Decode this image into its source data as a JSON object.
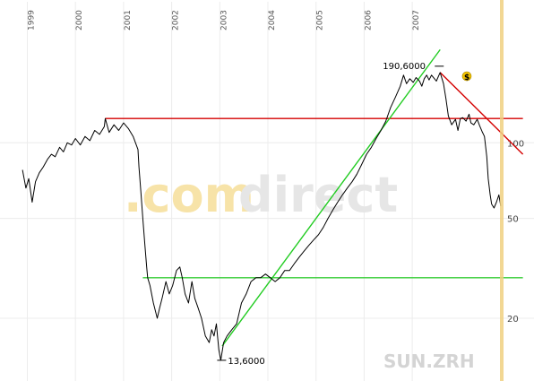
{
  "chart_data": {
    "type": "line",
    "symbol": "SUN.ZRH",
    "watermark": {
      "part1": ".com",
      "part2": "direct"
    },
    "years": [
      "1999",
      "2000",
      "2001",
      "2002",
      "2003",
      "2004",
      "2005",
      "2006",
      "2007"
    ],
    "y_scale": "log",
    "y_ticks": [
      "20",
      "50",
      "100"
    ],
    "annotations": {
      "high": "190,6000",
      "low": "13,6000",
      "dividend_marker": "$"
    },
    "series": [
      {
        "values": [
          [
            1998.9,
            78
          ],
          [
            1998.97,
            66
          ],
          [
            1999.03,
            72
          ],
          [
            1999.1,
            58
          ],
          [
            1999.17,
            70
          ],
          [
            1999.25,
            76
          ],
          [
            1999.33,
            80
          ],
          [
            1999.42,
            86
          ],
          [
            1999.5,
            90
          ],
          [
            1999.58,
            88
          ],
          [
            1999.67,
            96
          ],
          [
            1999.75,
            92
          ],
          [
            1999.83,
            100
          ],
          [
            1999.92,
            98
          ],
          [
            2000.0,
            104
          ],
          [
            2000.1,
            98
          ],
          [
            2000.2,
            106
          ],
          [
            2000.3,
            102
          ],
          [
            2000.4,
            112
          ],
          [
            2000.5,
            108
          ],
          [
            2000.6,
            116
          ],
          [
            2000.62,
            125
          ],
          [
            2000.7,
            110
          ],
          [
            2000.8,
            118
          ],
          [
            2000.9,
            112
          ],
          [
            2001.0,
            120
          ],
          [
            2001.1,
            114
          ],
          [
            2001.2,
            106
          ],
          [
            2001.3,
            94
          ],
          [
            2001.32,
            80
          ],
          [
            2001.36,
            64
          ],
          [
            2001.4,
            50
          ],
          [
            2001.44,
            40
          ],
          [
            2001.48,
            32
          ],
          [
            2001.5,
            29
          ],
          [
            2001.55,
            27
          ],
          [
            2001.62,
            23
          ],
          [
            2001.7,
            20
          ],
          [
            2001.75,
            22
          ],
          [
            2001.8,
            24
          ],
          [
            2001.88,
            28
          ],
          [
            2001.95,
            25
          ],
          [
            2002.02,
            27
          ],
          [
            2002.1,
            31
          ],
          [
            2002.17,
            32
          ],
          [
            2002.22,
            29
          ],
          [
            2002.28,
            25
          ],
          [
            2002.35,
            23
          ],
          [
            2002.42,
            28
          ],
          [
            2002.48,
            24
          ],
          [
            2002.55,
            22
          ],
          [
            2002.62,
            20
          ],
          [
            2002.7,
            17
          ],
          [
            2002.78,
            16
          ],
          [
            2002.83,
            18
          ],
          [
            2002.88,
            17
          ],
          [
            2002.93,
            19
          ],
          [
            2002.98,
            15
          ],
          [
            2003.02,
            13.6
          ],
          [
            2003.08,
            16
          ],
          [
            2003.15,
            17
          ],
          [
            2003.25,
            18
          ],
          [
            2003.35,
            19
          ],
          [
            2003.45,
            23
          ],
          [
            2003.55,
            25
          ],
          [
            2003.65,
            28
          ],
          [
            2003.75,
            29
          ],
          [
            2003.85,
            29
          ],
          [
            2003.95,
            30
          ],
          [
            2004.05,
            29
          ],
          [
            2004.15,
            28
          ],
          [
            2004.25,
            29
          ],
          [
            2004.35,
            31
          ],
          [
            2004.45,
            31
          ],
          [
            2004.55,
            33
          ],
          [
            2004.65,
            35
          ],
          [
            2004.75,
            37
          ],
          [
            2004.85,
            39
          ],
          [
            2004.95,
            41
          ],
          [
            2005.05,
            43
          ],
          [
            2005.15,
            46
          ],
          [
            2005.25,
            50
          ],
          [
            2005.35,
            54
          ],
          [
            2005.45,
            58
          ],
          [
            2005.55,
            62
          ],
          [
            2005.65,
            66
          ],
          [
            2005.75,
            70
          ],
          [
            2005.85,
            75
          ],
          [
            2005.95,
            82
          ],
          [
            2006.05,
            90
          ],
          [
            2006.15,
            96
          ],
          [
            2006.25,
            104
          ],
          [
            2006.35,
            112
          ],
          [
            2006.45,
            122
          ],
          [
            2006.55,
            138
          ],
          [
            2006.65,
            152
          ],
          [
            2006.75,
            168
          ],
          [
            2006.82,
            186
          ],
          [
            2006.88,
            172
          ],
          [
            2006.95,
            180
          ],
          [
            2007.02,
            174
          ],
          [
            2007.08,
            182
          ],
          [
            2007.15,
            176
          ],
          [
            2007.2,
            168
          ],
          [
            2007.25,
            180
          ],
          [
            2007.3,
            186
          ],
          [
            2007.35,
            178
          ],
          [
            2007.4,
            186
          ],
          [
            2007.45,
            181
          ],
          [
            2007.5,
            176
          ],
          [
            2007.58,
            190.6
          ],
          [
            2007.65,
            172
          ],
          [
            2007.7,
            150
          ],
          [
            2007.75,
            128
          ],
          [
            2007.82,
            118
          ],
          [
            2007.9,
            124
          ],
          [
            2007.95,
            112
          ],
          [
            2008.0,
            125
          ],
          [
            2008.05,
            126
          ],
          [
            2008.12,
            122
          ],
          [
            2008.18,
            130
          ],
          [
            2008.22,
            120
          ],
          [
            2008.28,
            118
          ],
          [
            2008.35,
            124
          ],
          [
            2008.4,
            117
          ],
          [
            2008.45,
            111
          ],
          [
            2008.5,
            106
          ],
          [
            2008.55,
            88
          ],
          [
            2008.58,
            72
          ],
          [
            2008.62,
            62
          ],
          [
            2008.65,
            57
          ],
          [
            2008.7,
            55
          ],
          [
            2008.75,
            58
          ],
          [
            2008.8,
            62
          ],
          [
            2008.84,
            56
          ]
        ]
      }
    ],
    "lines": [
      {
        "name": "resistance-2001-high",
        "color": "#d40000",
        "points": [
          [
            2000.62,
            125
          ],
          [
            2009.3,
            125
          ]
        ]
      },
      {
        "name": "support-2001-floor",
        "color": "#33cc33",
        "points": [
          [
            2001.4,
            29
          ],
          [
            2009.3,
            29
          ]
        ]
      },
      {
        "name": "uptrend-line",
        "color": "#22cc22",
        "points": [
          [
            2003.05,
            15.5
          ],
          [
            2007.58,
            235
          ]
        ]
      },
      {
        "name": "downtrend-line",
        "color": "#d40000",
        "points": [
          [
            2007.58,
            190.6
          ],
          [
            2009.3,
            90
          ]
        ]
      }
    ],
    "current_marker": {
      "color": "#f0d080"
    }
  }
}
